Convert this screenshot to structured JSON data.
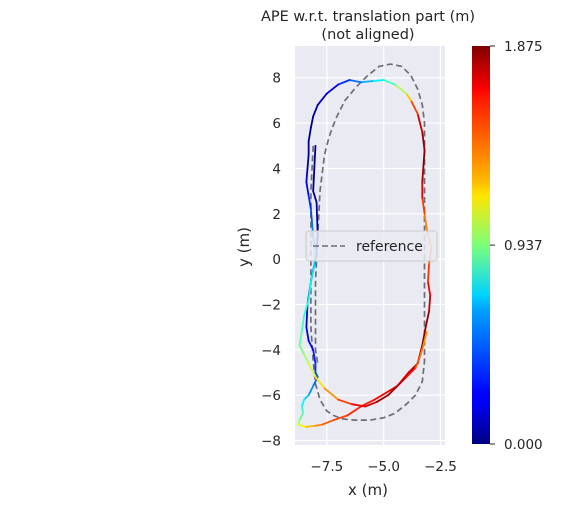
{
  "chart_data": {
    "type": "line",
    "title_lines": [
      "APE w.r.t. translation part (m)",
      "(not aligned)"
    ],
    "xlabel": "x (m)",
    "ylabel": "y (m)",
    "xlim": [
      -8.9,
      -2.3
    ],
    "ylim": [
      -8.2,
      9.4
    ],
    "xticks": [
      -7.5,
      -5.0,
      -2.5
    ],
    "xtick_labels": [
      "−7.5",
      "−5.0",
      "−2.5"
    ],
    "yticks": [
      8,
      6,
      4,
      2,
      0,
      -2,
      -4,
      -6,
      -8
    ],
    "ytick_labels": [
      "8",
      "6",
      "4",
      "2",
      "0",
      "−2",
      "−4",
      "−6",
      "−8"
    ],
    "grid": true,
    "legend": {
      "entries": [
        "reference"
      ],
      "placement": "center"
    },
    "colorbar": {
      "colormap": "jet",
      "min": 0.0,
      "max": 1.875,
      "tick_labels": [
        "1.875",
        "0.937",
        "0.000"
      ],
      "tick_values": [
        1.875,
        0.937,
        0.0
      ]
    },
    "series": [
      {
        "name": "reference",
        "style": "dashed",
        "color": "#6e6e7a",
        "x": [
          -8.1,
          -8.2,
          -8.2,
          -8.2,
          -8.2,
          -8.1,
          -8.0,
          -7.8,
          -7.5,
          -7.2,
          -6.8,
          -6.3,
          -5.6,
          -5.0,
          -4.5,
          -4.0,
          -3.6,
          -3.3,
          -3.2,
          -3.2,
          -3.2,
          -3.2,
          -3.2,
          -3.2,
          -3.2,
          -3.3,
          -3.5,
          -3.8,
          -4.2,
          -4.7,
          -5.2,
          -5.7,
          -6.2,
          -6.7,
          -7.1,
          -7.4,
          -7.6,
          -7.8,
          -7.9,
          -8.0,
          -8.0,
          -8.0,
          -8.0,
          -7.9,
          -7.9
        ],
        "y": [
          5.0,
          3.0,
          1.0,
          -1.0,
          -3.0,
          -4.5,
          -5.5,
          -6.2,
          -6.7,
          -6.9,
          -7.05,
          -7.1,
          -7.1,
          -7.0,
          -6.8,
          -6.4,
          -6.0,
          -5.4,
          -4.5,
          -3.0,
          -1.0,
          1.0,
          3.0,
          5.0,
          6.0,
          6.8,
          7.5,
          8.1,
          8.5,
          8.6,
          8.5,
          8.1,
          7.6,
          7.0,
          6.2,
          5.4,
          4.6,
          3.0,
          1.0,
          -1.0,
          -2.0,
          -3.0,
          -4.0,
          -4.6,
          -4.6
        ]
      },
      {
        "name": "",
        "style": "colormap",
        "x": [
          -8.0,
          -8.05,
          -8.1,
          -7.95,
          -7.9,
          -8.0,
          -8.2,
          -8.35,
          -8.4,
          -8.3,
          -8.1,
          -8.0,
          -8.0,
          -7.9,
          -8.1,
          -8.3,
          -8.5,
          -8.6,
          -8.55,
          -8.7,
          -8.75,
          -8.6,
          -8.4,
          -8.0,
          -7.7,
          -7.2,
          -6.6,
          -6.0,
          -5.4,
          -4.9,
          -4.4,
          -3.9,
          -3.5,
          -3.3,
          -3.15,
          -3.0,
          -2.95,
          -3.05,
          -3.0,
          -2.9,
          -3.1,
          -3.2,
          -3.3,
          -3.3,
          -3.25,
          -3.2,
          -3.3,
          -3.5,
          -3.8,
          -4.0,
          -4.5,
          -5.0,
          -5.5,
          -6.0,
          -6.5,
          -7.0,
          -7.5,
          -7.9,
          -8.1,
          -8.2,
          -8.3,
          -8.3,
          -8.35,
          -8.4,
          -8.3,
          -8.2,
          -8.15,
          -8.1,
          -8.0,
          -8.05,
          -8.2,
          -8.3,
          -8.5,
          -8.6,
          -8.7,
          -8.5,
          -8.3,
          -8.0,
          -7.6,
          -7.0,
          -6.4,
          -5.8,
          -5.3,
          -4.8,
          -4.4,
          -4.0,
          -3.6,
          -3.4,
          -3.25,
          -3.1
        ],
        "y": [
          5.0,
          4.0,
          3.0,
          2.5,
          1.0,
          0.0,
          -1.0,
          -2.0,
          -3.0,
          -3.6,
          -4.0,
          -4.6,
          -5.0,
          -5.2,
          -5.6,
          -6.0,
          -6.2,
          -6.5,
          -6.8,
          -7.1,
          -7.3,
          -7.35,
          -7.4,
          -7.35,
          -7.3,
          -7.1,
          -6.9,
          -6.5,
          -6.2,
          -5.9,
          -5.6,
          -5.0,
          -4.6,
          -3.8,
          -3.0,
          -2.3,
          -1.6,
          -1.0,
          -0.2,
          0.5,
          1.3,
          2.0,
          2.7,
          3.4,
          4.1,
          4.8,
          5.6,
          6.4,
          7.0,
          7.3,
          7.7,
          7.9,
          7.85,
          7.8,
          7.9,
          7.7,
          7.3,
          6.8,
          6.3,
          5.8,
          5.2,
          4.6,
          4.0,
          3.4,
          2.8,
          2.2,
          1.6,
          1.0,
          0.4,
          -0.3,
          -1.0,
          -1.8,
          -2.5,
          -3.2,
          -3.8,
          -4.2,
          -4.6,
          -5.2,
          -5.7,
          -6.2,
          -6.4,
          -6.5,
          -6.3,
          -6.0,
          -5.6,
          -5.2,
          -4.8,
          -4.3,
          -3.8,
          -3.2
        ],
        "ape": [
          0.02,
          0.02,
          0.03,
          0.05,
          0.08,
          0.1,
          0.12,
          0.15,
          0.18,
          0.2,
          0.25,
          0.3,
          0.35,
          0.4,
          0.45,
          0.55,
          0.65,
          0.75,
          0.85,
          0.95,
          1.05,
          1.15,
          1.25,
          1.35,
          1.45,
          1.5,
          1.55,
          1.6,
          1.62,
          1.65,
          1.7,
          1.75,
          1.8,
          1.85,
          1.87,
          1.8,
          1.7,
          1.6,
          1.5,
          1.4,
          1.35,
          1.45,
          1.6,
          1.75,
          1.85,
          1.87,
          1.8,
          1.65,
          1.4,
          1.15,
          0.9,
          0.75,
          0.62,
          0.5,
          0.38,
          0.25,
          0.15,
          0.08,
          0.04,
          0.02,
          0.02,
          0.05,
          0.1,
          0.18,
          0.26,
          0.34,
          0.42,
          0.5,
          0.58,
          0.64,
          0.7,
          0.75,
          0.8,
          0.85,
          0.9,
          0.95,
          1.05,
          1.15,
          1.3,
          1.45,
          1.6,
          1.7,
          1.78,
          1.82,
          1.8,
          1.7,
          1.55,
          1.45,
          1.4,
          1.35
        ]
      }
    ]
  }
}
